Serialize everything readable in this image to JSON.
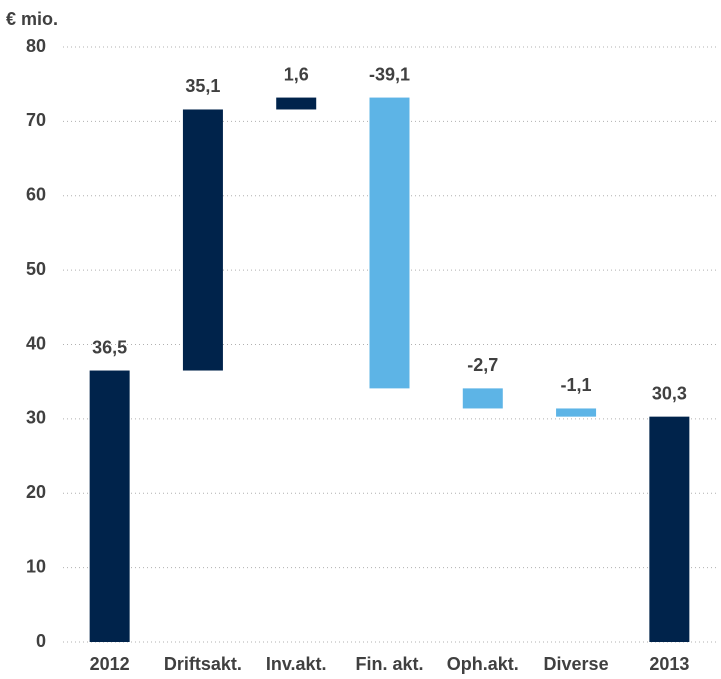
{
  "chart_data": {
    "type": "waterfall",
    "y_label": "€ mio.",
    "categories": [
      "2012",
      "Driftsakt.",
      "Inv.akt.",
      "Fin. akt.",
      "Oph.akt.",
      "Diverse",
      "2013"
    ],
    "values": [
      36.5,
      35.1,
      1.6,
      -39.1,
      -2.7,
      -1.1,
      30.3
    ],
    "value_labels": [
      "36,5",
      "35,1",
      "1,6",
      "-39,1",
      "-2,7",
      "-1,1",
      "30,3"
    ],
    "measure": [
      "absolute",
      "relative",
      "relative",
      "relative",
      "relative",
      "relative",
      "absolute"
    ],
    "total_color": "#00234b",
    "increase_color": "#00234b",
    "decrease_color": "#5db4e6",
    "ylim": [
      0,
      80
    ],
    "yticks": [
      0,
      10,
      20,
      30,
      40,
      50,
      60,
      70,
      80
    ],
    "grid": true
  }
}
